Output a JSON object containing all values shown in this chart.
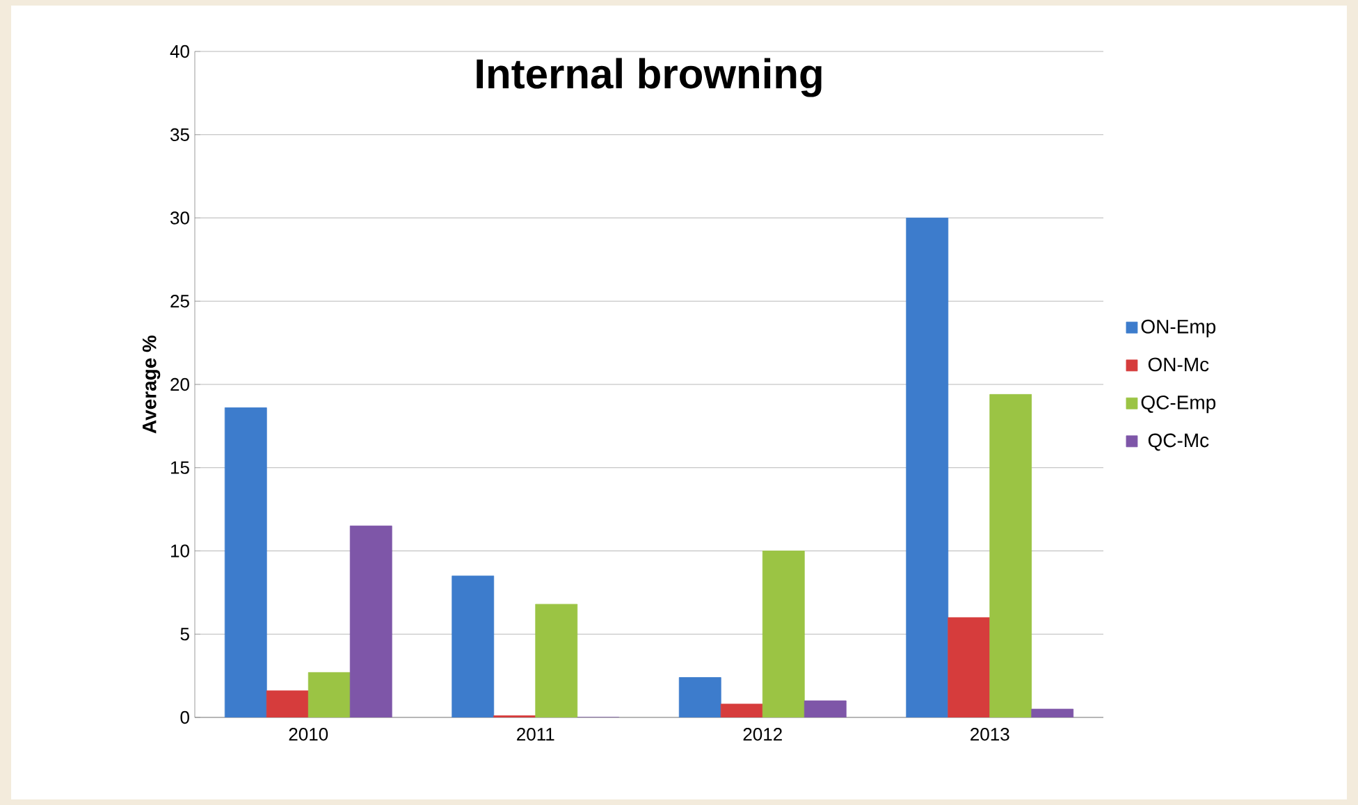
{
  "chart_data": {
    "type": "bar",
    "title": "Internal browning",
    "ylabel": "Average %",
    "categories": [
      "2010",
      "2011",
      "2012",
      "2013"
    ],
    "series": [
      {
        "name": "ON-Emp",
        "color": "#3d7ccc",
        "values": [
          18.6,
          8.5,
          2.4,
          30.0
        ]
      },
      {
        "name": "ON-Mc",
        "color": "#d63c3c",
        "values": [
          1.6,
          0.1,
          0.8,
          6.0
        ]
      },
      {
        "name": "QC-Emp",
        "color": "#9bc444",
        "values": [
          2.7,
          6.8,
          10.0,
          19.4
        ]
      },
      {
        "name": "QC-Mc",
        "color": "#7e56a8",
        "values": [
          11.5,
          0.0,
          1.0,
          0.5
        ]
      }
    ],
    "ylim": [
      0,
      40
    ],
    "yticks": [
      0,
      5,
      10,
      15,
      20,
      25,
      30,
      35,
      40
    ],
    "grid": "y",
    "legend": "right"
  }
}
